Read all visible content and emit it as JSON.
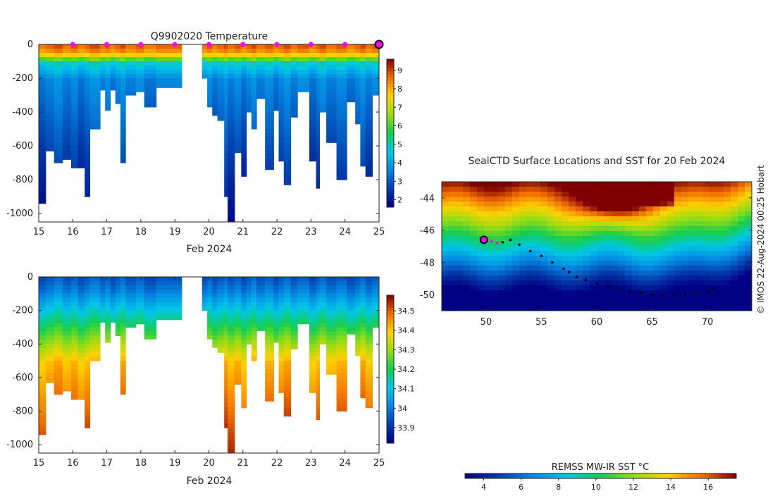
{
  "chart_data": [
    {
      "type": "heatmap",
      "title": "Q9902020  Temperature",
      "xlabel": "Feb 2024",
      "xlim": [
        15,
        25
      ],
      "ylim": [
        -1050,
        0
      ],
      "x_ticks": [
        "15",
        "16",
        "17",
        "18",
        "19",
        "20",
        "21",
        "22",
        "23",
        "24",
        "25"
      ],
      "y_ticks": [
        "0",
        "-200",
        "-400",
        "-600",
        "-800",
        "-1000"
      ],
      "colorbar": {
        "range": [
          1.6,
          9.6
        ],
        "ticks": [
          "2",
          "3",
          "4",
          "5",
          "6",
          "7",
          "8",
          "9"
        ]
      },
      "surface_markers_x": [
        16,
        17,
        18,
        19,
        20,
        21,
        22,
        23,
        24
      ],
      "current_marker_x": 25,
      "profiles": [
        {
          "x": 15.0,
          "d": 940
        },
        {
          "x": 15.2,
          "d": 630
        },
        {
          "x": 15.45,
          "d": 700
        },
        {
          "x": 15.7,
          "d": 680
        },
        {
          "x": 15.95,
          "d": 730
        },
        {
          "x": 16.15,
          "d": 730
        },
        {
          "x": 16.35,
          "d": 900
        },
        {
          "x": 16.5,
          "d": 500
        },
        {
          "x": 16.8,
          "d": 270
        },
        {
          "x": 16.95,
          "d": 390
        },
        {
          "x": 17.1,
          "d": 270
        },
        {
          "x": 17.25,
          "d": 350
        },
        {
          "x": 17.4,
          "d": 700
        },
        {
          "x": 17.55,
          "d": 300
        },
        {
          "x": 17.85,
          "d": 280
        },
        {
          "x": 18.1,
          "d": 370
        },
        {
          "x": 18.45,
          "d": 255
        },
        {
          "x": 19.2,
          "d": 0
        },
        {
          "x": 19.8,
          "d": 200
        },
        {
          "x": 19.95,
          "d": 370
        },
        {
          "x": 20.1,
          "d": 420
        },
        {
          "x": 20.25,
          "d": 450
        },
        {
          "x": 20.45,
          "d": 900
        },
        {
          "x": 20.55,
          "d": 1050
        },
        {
          "x": 20.75,
          "d": 640
        },
        {
          "x": 20.95,
          "d": 780
        },
        {
          "x": 21.1,
          "d": 400
        },
        {
          "x": 21.25,
          "d": 500
        },
        {
          "x": 21.4,
          "d": 320
        },
        {
          "x": 21.65,
          "d": 740
        },
        {
          "x": 21.9,
          "d": 390
        },
        {
          "x": 22.05,
          "d": 690
        },
        {
          "x": 22.2,
          "d": 830
        },
        {
          "x": 22.4,
          "d": 430
        },
        {
          "x": 22.6,
          "d": 280
        },
        {
          "x": 22.95,
          "d": 690
        },
        {
          "x": 23.15,
          "d": 850
        },
        {
          "x": 23.25,
          "d": 400
        },
        {
          "x": 23.45,
          "d": 580
        },
        {
          "x": 23.75,
          "d": 800
        },
        {
          "x": 24.05,
          "d": 340
        },
        {
          "x": 24.3,
          "d": 470
        },
        {
          "x": 24.45,
          "d": 720
        },
        {
          "x": 24.6,
          "d": 780
        },
        {
          "x": 24.8,
          "d": 300
        },
        {
          "x": 25.05,
          "d": 300
        }
      ]
    },
    {
      "type": "heatmap",
      "title": "",
      "xlabel": "Feb 2024",
      "xlim": [
        15,
        25
      ],
      "ylim": [
        -1050,
        0
      ],
      "x_ticks": [
        "15",
        "16",
        "17",
        "18",
        "19",
        "20",
        "21",
        "22",
        "23",
        "24",
        "25"
      ],
      "y_ticks": [
        "0",
        "-200",
        "-400",
        "-600",
        "-800",
        "-1000"
      ],
      "colorbar": {
        "range": [
          33.82,
          34.58
        ],
        "ticks": [
          "33.9",
          "34",
          "34.1",
          "34.2",
          "34.3",
          "34.4",
          "34.5"
        ]
      }
    },
    {
      "type": "heatmap",
      "title": "SealCTD Surface Locations and SST for 20 Feb 2024",
      "xlim": [
        46,
        74
      ],
      "ylim": [
        -51,
        -43
      ],
      "x_ticks": [
        "50",
        "55",
        "60",
        "65",
        "70"
      ],
      "y_ticks": [
        "-44",
        "-46",
        "-48",
        "-50"
      ],
      "colorbar": {
        "label": "REMSS MW-IR SST °C",
        "range": [
          3,
          17.5
        ],
        "ticks": [
          "4",
          "6",
          "8",
          "10",
          "12",
          "14",
          "16"
        ]
      },
      "current_location": {
        "lon": 49.8,
        "lat": -46.6
      },
      "track": [
        [
          50.5,
          -46.7
        ],
        [
          51,
          -46.8
        ],
        [
          51.5,
          -46.75
        ],
        [
          52.2,
          -46.6
        ],
        [
          53,
          -46.9
        ],
        [
          54,
          -47.3
        ],
        [
          55,
          -47.6
        ],
        [
          56,
          -48.0
        ],
        [
          57,
          -48.4
        ],
        [
          57.5,
          -48.6
        ],
        [
          58.2,
          -48.9
        ],
        [
          59,
          -49.1
        ],
        [
          60,
          -49.3
        ],
        [
          61,
          -49.5
        ],
        [
          62,
          -49.65
        ],
        [
          63,
          -49.8
        ],
        [
          64,
          -49.9
        ],
        [
          65,
          -50.0
        ],
        [
          66,
          -50.05
        ],
        [
          67,
          -50.05
        ],
        [
          68,
          -50.0
        ],
        [
          69,
          -49.9
        ],
        [
          70,
          -49.8
        ],
        [
          70.5,
          -49.6
        ]
      ]
    }
  ],
  "side_credit": "© IMOS 22-Aug-2024 00:25 Hobart"
}
